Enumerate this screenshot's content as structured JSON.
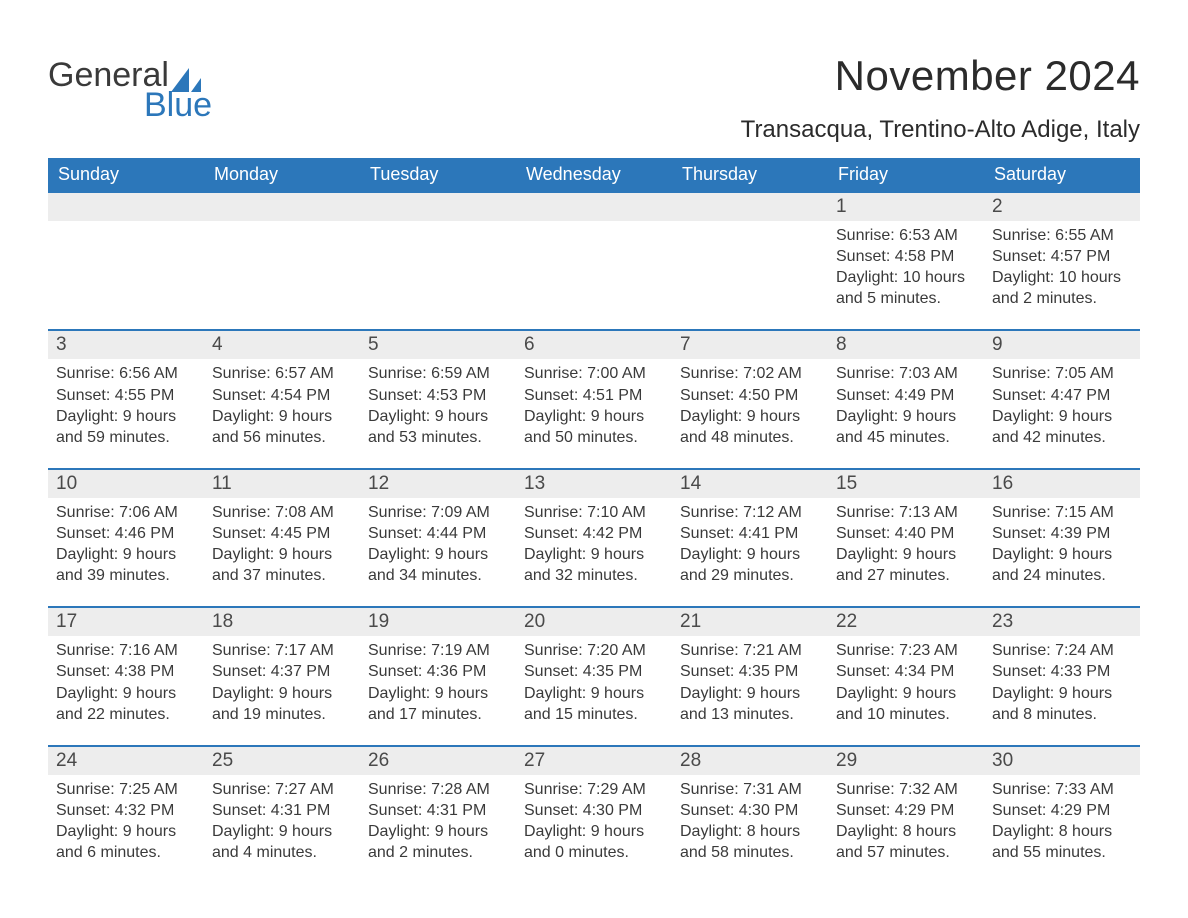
{
  "brand": {
    "word1": "General",
    "word2": "Blue",
    "accent": "#2c77ba",
    "text_color": "#3a3a3a"
  },
  "header": {
    "month_title": "November 2024",
    "location": "Transacqua, Trentino-Alto Adige, Italy"
  },
  "calendar": {
    "type": "table",
    "header_bg": "#2c77ba",
    "header_fg": "#ffffff",
    "row_divider_color": "#2c77ba",
    "daynum_bg": "#ededed",
    "body_bg": "#ffffff",
    "font_family": "Arial",
    "dow_fontsize": 18,
    "daynum_fontsize": 19,
    "body_fontsize": 16,
    "days_of_week": [
      "Sunday",
      "Monday",
      "Tuesday",
      "Wednesday",
      "Thursday",
      "Friday",
      "Saturday"
    ],
    "weeks": [
      [
        null,
        null,
        null,
        null,
        null,
        {
          "n": "1",
          "sunrise": "Sunrise: 6:53 AM",
          "sunset": "Sunset: 4:58 PM",
          "dl1": "Daylight: 10 hours",
          "dl2": "and 5 minutes."
        },
        {
          "n": "2",
          "sunrise": "Sunrise: 6:55 AM",
          "sunset": "Sunset: 4:57 PM",
          "dl1": "Daylight: 10 hours",
          "dl2": "and 2 minutes."
        }
      ],
      [
        {
          "n": "3",
          "sunrise": "Sunrise: 6:56 AM",
          "sunset": "Sunset: 4:55 PM",
          "dl1": "Daylight: 9 hours",
          "dl2": "and 59 minutes."
        },
        {
          "n": "4",
          "sunrise": "Sunrise: 6:57 AM",
          "sunset": "Sunset: 4:54 PM",
          "dl1": "Daylight: 9 hours",
          "dl2": "and 56 minutes."
        },
        {
          "n": "5",
          "sunrise": "Sunrise: 6:59 AM",
          "sunset": "Sunset: 4:53 PM",
          "dl1": "Daylight: 9 hours",
          "dl2": "and 53 minutes."
        },
        {
          "n": "6",
          "sunrise": "Sunrise: 7:00 AM",
          "sunset": "Sunset: 4:51 PM",
          "dl1": "Daylight: 9 hours",
          "dl2": "and 50 minutes."
        },
        {
          "n": "7",
          "sunrise": "Sunrise: 7:02 AM",
          "sunset": "Sunset: 4:50 PM",
          "dl1": "Daylight: 9 hours",
          "dl2": "and 48 minutes."
        },
        {
          "n": "8",
          "sunrise": "Sunrise: 7:03 AM",
          "sunset": "Sunset: 4:49 PM",
          "dl1": "Daylight: 9 hours",
          "dl2": "and 45 minutes."
        },
        {
          "n": "9",
          "sunrise": "Sunrise: 7:05 AM",
          "sunset": "Sunset: 4:47 PM",
          "dl1": "Daylight: 9 hours",
          "dl2": "and 42 minutes."
        }
      ],
      [
        {
          "n": "10",
          "sunrise": "Sunrise: 7:06 AM",
          "sunset": "Sunset: 4:46 PM",
          "dl1": "Daylight: 9 hours",
          "dl2": "and 39 minutes."
        },
        {
          "n": "11",
          "sunrise": "Sunrise: 7:08 AM",
          "sunset": "Sunset: 4:45 PM",
          "dl1": "Daylight: 9 hours",
          "dl2": "and 37 minutes."
        },
        {
          "n": "12",
          "sunrise": "Sunrise: 7:09 AM",
          "sunset": "Sunset: 4:44 PM",
          "dl1": "Daylight: 9 hours",
          "dl2": "and 34 minutes."
        },
        {
          "n": "13",
          "sunrise": "Sunrise: 7:10 AM",
          "sunset": "Sunset: 4:42 PM",
          "dl1": "Daylight: 9 hours",
          "dl2": "and 32 minutes."
        },
        {
          "n": "14",
          "sunrise": "Sunrise: 7:12 AM",
          "sunset": "Sunset: 4:41 PM",
          "dl1": "Daylight: 9 hours",
          "dl2": "and 29 minutes."
        },
        {
          "n": "15",
          "sunrise": "Sunrise: 7:13 AM",
          "sunset": "Sunset: 4:40 PM",
          "dl1": "Daylight: 9 hours",
          "dl2": "and 27 minutes."
        },
        {
          "n": "16",
          "sunrise": "Sunrise: 7:15 AM",
          "sunset": "Sunset: 4:39 PM",
          "dl1": "Daylight: 9 hours",
          "dl2": "and 24 minutes."
        }
      ],
      [
        {
          "n": "17",
          "sunrise": "Sunrise: 7:16 AM",
          "sunset": "Sunset: 4:38 PM",
          "dl1": "Daylight: 9 hours",
          "dl2": "and 22 minutes."
        },
        {
          "n": "18",
          "sunrise": "Sunrise: 7:17 AM",
          "sunset": "Sunset: 4:37 PM",
          "dl1": "Daylight: 9 hours",
          "dl2": "and 19 minutes."
        },
        {
          "n": "19",
          "sunrise": "Sunrise: 7:19 AM",
          "sunset": "Sunset: 4:36 PM",
          "dl1": "Daylight: 9 hours",
          "dl2": "and 17 minutes."
        },
        {
          "n": "20",
          "sunrise": "Sunrise: 7:20 AM",
          "sunset": "Sunset: 4:35 PM",
          "dl1": "Daylight: 9 hours",
          "dl2": "and 15 minutes."
        },
        {
          "n": "21",
          "sunrise": "Sunrise: 7:21 AM",
          "sunset": "Sunset: 4:35 PM",
          "dl1": "Daylight: 9 hours",
          "dl2": "and 13 minutes."
        },
        {
          "n": "22",
          "sunrise": "Sunrise: 7:23 AM",
          "sunset": "Sunset: 4:34 PM",
          "dl1": "Daylight: 9 hours",
          "dl2": "and 10 minutes."
        },
        {
          "n": "23",
          "sunrise": "Sunrise: 7:24 AM",
          "sunset": "Sunset: 4:33 PM",
          "dl1": "Daylight: 9 hours",
          "dl2": "and 8 minutes."
        }
      ],
      [
        {
          "n": "24",
          "sunrise": "Sunrise: 7:25 AM",
          "sunset": "Sunset: 4:32 PM",
          "dl1": "Daylight: 9 hours",
          "dl2": "and 6 minutes."
        },
        {
          "n": "25",
          "sunrise": "Sunrise: 7:27 AM",
          "sunset": "Sunset: 4:31 PM",
          "dl1": "Daylight: 9 hours",
          "dl2": "and 4 minutes."
        },
        {
          "n": "26",
          "sunrise": "Sunrise: 7:28 AM",
          "sunset": "Sunset: 4:31 PM",
          "dl1": "Daylight: 9 hours",
          "dl2": "and 2 minutes."
        },
        {
          "n": "27",
          "sunrise": "Sunrise: 7:29 AM",
          "sunset": "Sunset: 4:30 PM",
          "dl1": "Daylight: 9 hours",
          "dl2": "and 0 minutes."
        },
        {
          "n": "28",
          "sunrise": "Sunrise: 7:31 AM",
          "sunset": "Sunset: 4:30 PM",
          "dl1": "Daylight: 8 hours",
          "dl2": "and 58 minutes."
        },
        {
          "n": "29",
          "sunrise": "Sunrise: 7:32 AM",
          "sunset": "Sunset: 4:29 PM",
          "dl1": "Daylight: 8 hours",
          "dl2": "and 57 minutes."
        },
        {
          "n": "30",
          "sunrise": "Sunrise: 7:33 AM",
          "sunset": "Sunset: 4:29 PM",
          "dl1": "Daylight: 8 hours",
          "dl2": "and 55 minutes."
        }
      ]
    ]
  }
}
